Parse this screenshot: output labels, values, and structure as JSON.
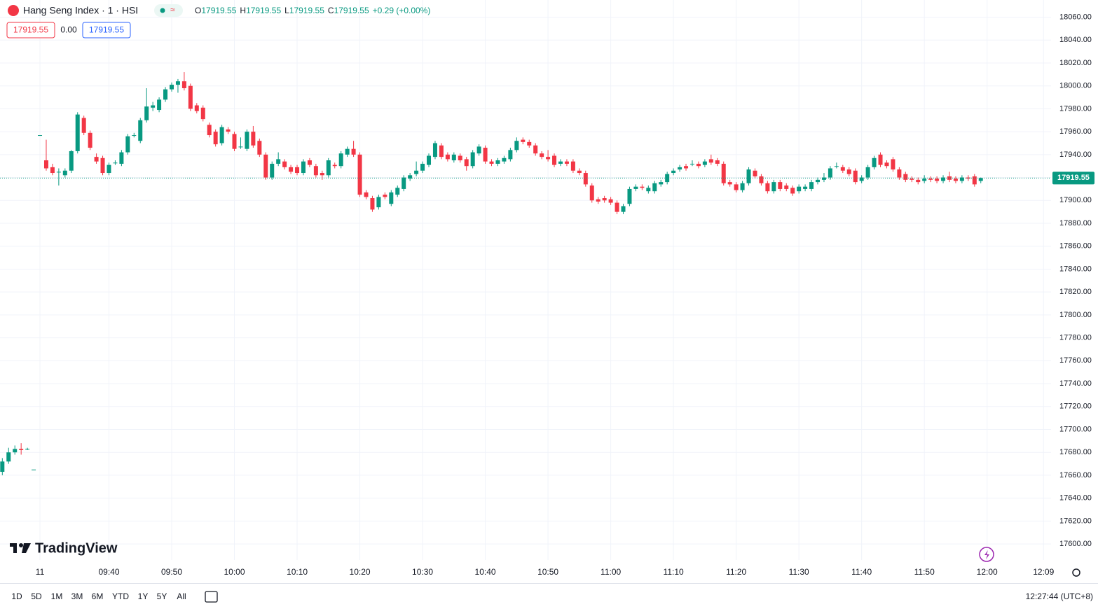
{
  "header": {
    "symbol": "Hang Seng Index · 1 · HSI",
    "ohlc": [
      {
        "label": "O",
        "value": "17919.55"
      },
      {
        "label": "H",
        "value": "17919.55"
      },
      {
        "label": "L",
        "value": "17919.55"
      },
      {
        "label": "C",
        "value": "17919.55"
      }
    ],
    "change": "+0.29 (+0.00%)",
    "bid": "17919.55",
    "spread": "0.00",
    "ask": "17919.55"
  },
  "logo": "TradingView",
  "toolbar": {
    "ranges": [
      "1D",
      "5D",
      "1M",
      "3M",
      "6M",
      "YTD",
      "1Y",
      "5Y",
      "All"
    ],
    "clock": "12:27:44 (UTC+8)"
  },
  "chart_data": {
    "type": "candlestick",
    "up_color": "#089981",
    "down_color": "#f23645",
    "grid": true,
    "xlim": [
      -0.37,
      167.2
    ],
    "ylim": [
      17586,
      18075
    ],
    "xticks": [
      {
        "value": 6,
        "label": "11"
      },
      {
        "value": 17,
        "label": "09:40"
      },
      {
        "value": 27,
        "label": "09:50"
      },
      {
        "value": 37,
        "label": "10:00"
      },
      {
        "value": 47,
        "label": "10:10"
      },
      {
        "value": 57,
        "label": "10:20"
      },
      {
        "value": 67,
        "label": "10:30"
      },
      {
        "value": 77,
        "label": "10:40"
      },
      {
        "value": 87,
        "label": "10:50"
      },
      {
        "value": 97,
        "label": "11:00"
      },
      {
        "value": 107,
        "label": "11:10"
      },
      {
        "value": 117,
        "label": "11:20"
      },
      {
        "value": 127,
        "label": "11:30"
      },
      {
        "value": 137,
        "label": "11:40"
      },
      {
        "value": 147,
        "label": "11:50"
      },
      {
        "value": 157,
        "label": "12:00"
      },
      {
        "value": 166,
        "label": "12:09"
      }
    ],
    "yticks": [
      {
        "value": 18060,
        "label": "18060.00"
      },
      {
        "value": 18040,
        "label": "18040.00"
      },
      {
        "value": 18020,
        "label": "18020.00"
      },
      {
        "value": 18000,
        "label": "18000.00"
      },
      {
        "value": 17980,
        "label": "17980.00"
      },
      {
        "value": 17960,
        "label": "17960.00"
      },
      {
        "value": 17940,
        "label": "17940.00"
      },
      {
        "value": 17920,
        "label": "17920.00"
      },
      {
        "value": 17900,
        "label": "17900.00"
      },
      {
        "value": 17880,
        "label": "17880.00"
      },
      {
        "value": 17860,
        "label": "17860.00"
      },
      {
        "value": 17840,
        "label": "17840.00"
      },
      {
        "value": 17820,
        "label": "17820.00"
      },
      {
        "value": 17800,
        "label": "17800.00"
      },
      {
        "value": 17780,
        "label": "17780.00"
      },
      {
        "value": 17760,
        "label": "17760.00"
      },
      {
        "value": 17740,
        "label": "17740.00"
      },
      {
        "value": 17720,
        "label": "17720.00"
      },
      {
        "value": 17700,
        "label": "17700.00"
      },
      {
        "value": 17680,
        "label": "17680.00"
      },
      {
        "value": 17660,
        "label": "17660.00"
      },
      {
        "value": 17640,
        "label": "17640.00"
      },
      {
        "value": 17620,
        "label": "17620.00"
      },
      {
        "value": 17600,
        "label": "17600.00"
      }
    ],
    "last_price": 17919.55,
    "candles": [
      [
        17663,
        17675,
        17660,
        17672
      ],
      [
        17672,
        17684,
        17670,
        17680
      ],
      [
        17680,
        17686,
        17678,
        17683
      ],
      [
        17683,
        17688,
        17678,
        17682
      ],
      [
        17683,
        17684,
        17682,
        17683
      ],
      [
        17665,
        17665,
        17665,
        17665
      ],
      [
        17957,
        17957,
        17957,
        17957
      ],
      [
        17935,
        17953,
        17926,
        17928
      ],
      [
        17929,
        17932,
        17922,
        17924
      ],
      [
        17925,
        17928,
        17913,
        17925
      ],
      [
        17922,
        17928,
        17920,
        17926
      ],
      [
        17926,
        17944,
        17924,
        17943
      ],
      [
        17943,
        17977,
        17941,
        17975
      ],
      [
        17972,
        17974,
        17957,
        17959
      ],
      [
        17959,
        17961,
        17944,
        17946
      ],
      [
        17938,
        17941,
        17932,
        17934
      ],
      [
        17937,
        17939,
        17922,
        17924
      ],
      [
        17924,
        17933,
        17922,
        17931
      ],
      [
        17933,
        17935,
        17931,
        17933
      ],
      [
        17932,
        17944,
        17930,
        17942
      ],
      [
        17942,
        17958,
        17940,
        17956
      ],
      [
        17957,
        17959,
        17955,
        17957
      ],
      [
        17952,
        17972,
        17950,
        17970
      ],
      [
        17970,
        17998,
        17968,
        17982
      ],
      [
        17981,
        17986,
        17978,
        17983
      ],
      [
        17979,
        17990,
        17977,
        17988
      ],
      [
        17988,
        17999,
        17986,
        17997
      ],
      [
        17997,
        18003,
        17995,
        18001
      ],
      [
        18001,
        18006,
        17994,
        18004
      ],
      [
        18004,
        18012,
        17996,
        17998
      ],
      [
        18000,
        18002,
        17978,
        17980
      ],
      [
        17983,
        17985,
        17976,
        17978
      ],
      [
        17981,
        17983,
        17969,
        17971
      ],
      [
        17966,
        17968,
        17955,
        17957
      ],
      [
        17960,
        17962,
        17947,
        17949
      ],
      [
        17950,
        17966,
        17948,
        17964
      ],
      [
        17962,
        17964,
        17958,
        17960
      ],
      [
        17958,
        17960,
        17943,
        17945
      ],
      [
        17947,
        17955,
        17945,
        17947
      ],
      [
        17945,
        17962,
        17943,
        17960
      ],
      [
        17960,
        17965,
        17946,
        17948
      ],
      [
        17952,
        17954,
        17938,
        17940
      ],
      [
        17940,
        17942,
        17918,
        17920
      ],
      [
        17920,
        17934,
        17918,
        17932
      ],
      [
        17932,
        17942,
        17930,
        17936
      ],
      [
        17934,
        17936,
        17927,
        17929
      ],
      [
        17929,
        17931,
        17923,
        17925
      ],
      [
        17929,
        17931,
        17922,
        17924
      ],
      [
        17924,
        17936,
        17922,
        17934
      ],
      [
        17935,
        17937,
        17929,
        17931
      ],
      [
        17930,
        17932,
        17920,
        17922
      ],
      [
        17924,
        17926,
        17918,
        17922
      ],
      [
        17922,
        17937,
        17920,
        17935
      ],
      [
        17931,
        17933,
        17928,
        17930
      ],
      [
        17930,
        17943,
        17928,
        17941
      ],
      [
        17940,
        17947,
        17938,
        17945
      ],
      [
        17945,
        17952,
        17938,
        17940
      ],
      [
        17940,
        17942,
        17903,
        17905
      ],
      [
        17907,
        17909,
        17901,
        17903
      ],
      [
        17902,
        17904,
        17890,
        17892
      ],
      [
        17894,
        17905,
        17892,
        17903
      ],
      [
        17905,
        17907,
        17901,
        17903
      ],
      [
        17897,
        17909,
        17895,
        17907
      ],
      [
        17905,
        17913,
        17903,
        17911
      ],
      [
        17910,
        17922,
        17908,
        17920
      ],
      [
        17919,
        17924,
        17917,
        17922
      ],
      [
        17923,
        17934,
        17921,
        17926
      ],
      [
        17926,
        17934,
        17924,
        17932
      ],
      [
        17931,
        17941,
        17929,
        17939
      ],
      [
        17938,
        17952,
        17936,
        17950
      ],
      [
        17948,
        17950,
        17936,
        17938
      ],
      [
        17940,
        17942,
        17934,
        17936
      ],
      [
        17935,
        17942,
        17933,
        17940
      ],
      [
        17939,
        17941,
        17933,
        17935
      ],
      [
        17936,
        17938,
        17926,
        17930
      ],
      [
        17930,
        17944,
        17928,
        17942
      ],
      [
        17941,
        17949,
        17939,
        17947
      ],
      [
        17946,
        17948,
        17932,
        17934
      ],
      [
        17934,
        17936,
        17930,
        17932
      ],
      [
        17932,
        17937,
        17930,
        17935
      ],
      [
        17934,
        17939,
        17932,
        17937
      ],
      [
        17936,
        17946,
        17934,
        17944
      ],
      [
        17944,
        17955,
        17942,
        17952
      ],
      [
        17953,
        17955,
        17949,
        17951
      ],
      [
        17951,
        17953,
        17946,
        17948
      ],
      [
        17948,
        17950,
        17939,
        17941
      ],
      [
        17941,
        17943,
        17936,
        17938
      ],
      [
        17938,
        17944,
        17934,
        17936
      ],
      [
        17939,
        17941,
        17929,
        17931
      ],
      [
        17932,
        17936,
        17930,
        17934
      ],
      [
        17934,
        17936,
        17930,
        17932
      ],
      [
        17934,
        17936,
        17924,
        17926
      ],
      [
        17926,
        17928,
        17922,
        17924
      ],
      [
        17924,
        17926,
        17912,
        17914
      ],
      [
        17913,
        17915,
        17898,
        17900
      ],
      [
        17901,
        17903,
        17897,
        17899
      ],
      [
        17902,
        17904,
        17898,
        17900
      ],
      [
        17901,
        17903,
        17896,
        17898
      ],
      [
        17898,
        17900,
        17888,
        17890
      ],
      [
        17890,
        17897,
        17888,
        17895
      ],
      [
        17897,
        17912,
        17895,
        17910
      ],
      [
        17910,
        17914,
        17908,
        17912
      ],
      [
        17912,
        17914,
        17909,
        17911
      ],
      [
        17908,
        17913,
        17906,
        17911
      ],
      [
        17908,
        17917,
        17906,
        17915
      ],
      [
        17914,
        17918,
        17912,
        17916
      ],
      [
        17916,
        17925,
        17914,
        17923
      ],
      [
        17924,
        17928,
        17922,
        17926
      ],
      [
        17927,
        17931,
        17925,
        17929
      ],
      [
        17930,
        17932,
        17926,
        17928
      ],
      [
        17932,
        17935,
        17930,
        17932
      ],
      [
        17932,
        17934,
        17928,
        17930
      ],
      [
        17931,
        17936,
        17929,
        17934
      ],
      [
        17936,
        17940,
        17931,
        17933
      ],
      [
        17935,
        17937,
        17930,
        17932
      ],
      [
        17932,
        17934,
        17913,
        17915
      ],
      [
        17916,
        17918,
        17912,
        17914
      ],
      [
        17914,
        17916,
        17907,
        17909
      ],
      [
        17909,
        17917,
        17907,
        17915
      ],
      [
        17915,
        17929,
        17913,
        17927
      ],
      [
        17926,
        17928,
        17919,
        17921
      ],
      [
        17921,
        17923,
        17913,
        17915
      ],
      [
        17915,
        17917,
        17906,
        17908
      ],
      [
        17908,
        17918,
        17906,
        17916
      ],
      [
        17916,
        17918,
        17908,
        17910
      ],
      [
        17913,
        17915,
        17908,
        17910
      ],
      [
        17911,
        17913,
        17904,
        17906
      ],
      [
        17908,
        17914,
        17906,
        17912
      ],
      [
        17910,
        17914,
        17908,
        17912
      ],
      [
        17910,
        17918,
        17908,
        17916
      ],
      [
        17916,
        17920,
        17914,
        17918
      ],
      [
        17918,
        17924,
        17916,
        17920
      ],
      [
        17920,
        17930,
        17918,
        17928
      ],
      [
        17930,
        17933,
        17928,
        17930
      ],
      [
        17929,
        17931,
        17924,
        17926
      ],
      [
        17927,
        17929,
        17921,
        17923
      ],
      [
        17926,
        17928,
        17914,
        17916
      ],
      [
        17917,
        17922,
        17915,
        17920
      ],
      [
        17920,
        17931,
        17918,
        17929
      ],
      [
        17929,
        17939,
        17927,
        17937
      ],
      [
        17940,
        17942,
        17929,
        17931
      ],
      [
        17933,
        17935,
        17928,
        17930
      ],
      [
        17936,
        17938,
        17925,
        17927
      ],
      [
        17927,
        17929,
        17918,
        17920
      ],
      [
        17923,
        17925,
        17916,
        17918
      ],
      [
        17919,
        17921,
        17916,
        17918
      ],
      [
        17918,
        17920,
        17914,
        17916
      ],
      [
        17917,
        17922,
        17915,
        17919
      ],
      [
        17919,
        17921,
        17916,
        17918
      ],
      [
        17919,
        17921,
        17915,
        17917
      ],
      [
        17917,
        17922,
        17915,
        17920
      ],
      [
        17921,
        17925,
        17916,
        17918
      ],
      [
        17919,
        17921,
        17915,
        17917
      ],
      [
        17917,
        17922,
        17915,
        17920
      ],
      [
        17920,
        17922,
        17917,
        17919
      ],
      [
        17921,
        17923,
        17912,
        17914
      ],
      [
        17917,
        17920,
        17915,
        17919.55
      ]
    ]
  }
}
